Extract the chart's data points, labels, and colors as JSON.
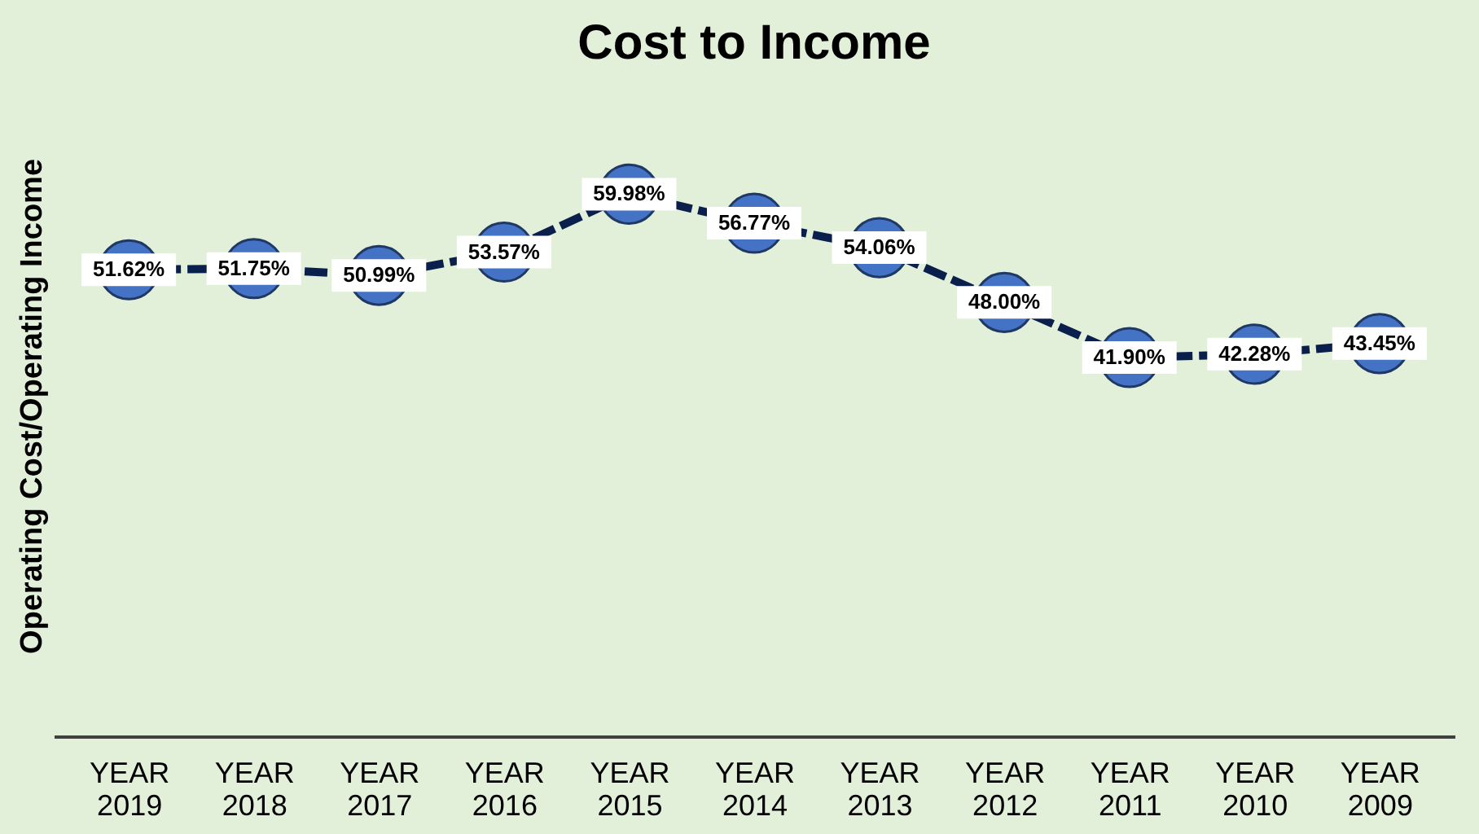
{
  "chart_data": {
    "type": "line",
    "title": "Cost to Income",
    "ylabel": "Operating Cost/Operating Income",
    "categories": [
      "YEAR 2019",
      "YEAR 2018",
      "YEAR 2017",
      "YEAR 2016",
      "YEAR 2015",
      "YEAR 2014",
      "YEAR 2013",
      "YEAR 2012",
      "YEAR 2011",
      "YEAR 2010",
      "YEAR 2009"
    ],
    "series": [
      {
        "color": "#0b1f4d",
        "values": [
          51.62,
          51.75,
          50.99,
          53.57,
          59.98,
          56.77,
          54.06,
          48.0,
          41.9,
          42.28,
          43.45
        ],
        "value_labels": [
          "51.62%",
          "51.75%",
          "50.99%",
          "53.57%",
          "59.98%",
          "56.77%",
          "54.06%",
          "48.00%",
          "41.90%",
          "42.28%",
          "43.45%"
        ]
      }
    ],
    "marker": "circle",
    "line_style": "dashed",
    "grid": false,
    "tick_labels": "x"
  }
}
